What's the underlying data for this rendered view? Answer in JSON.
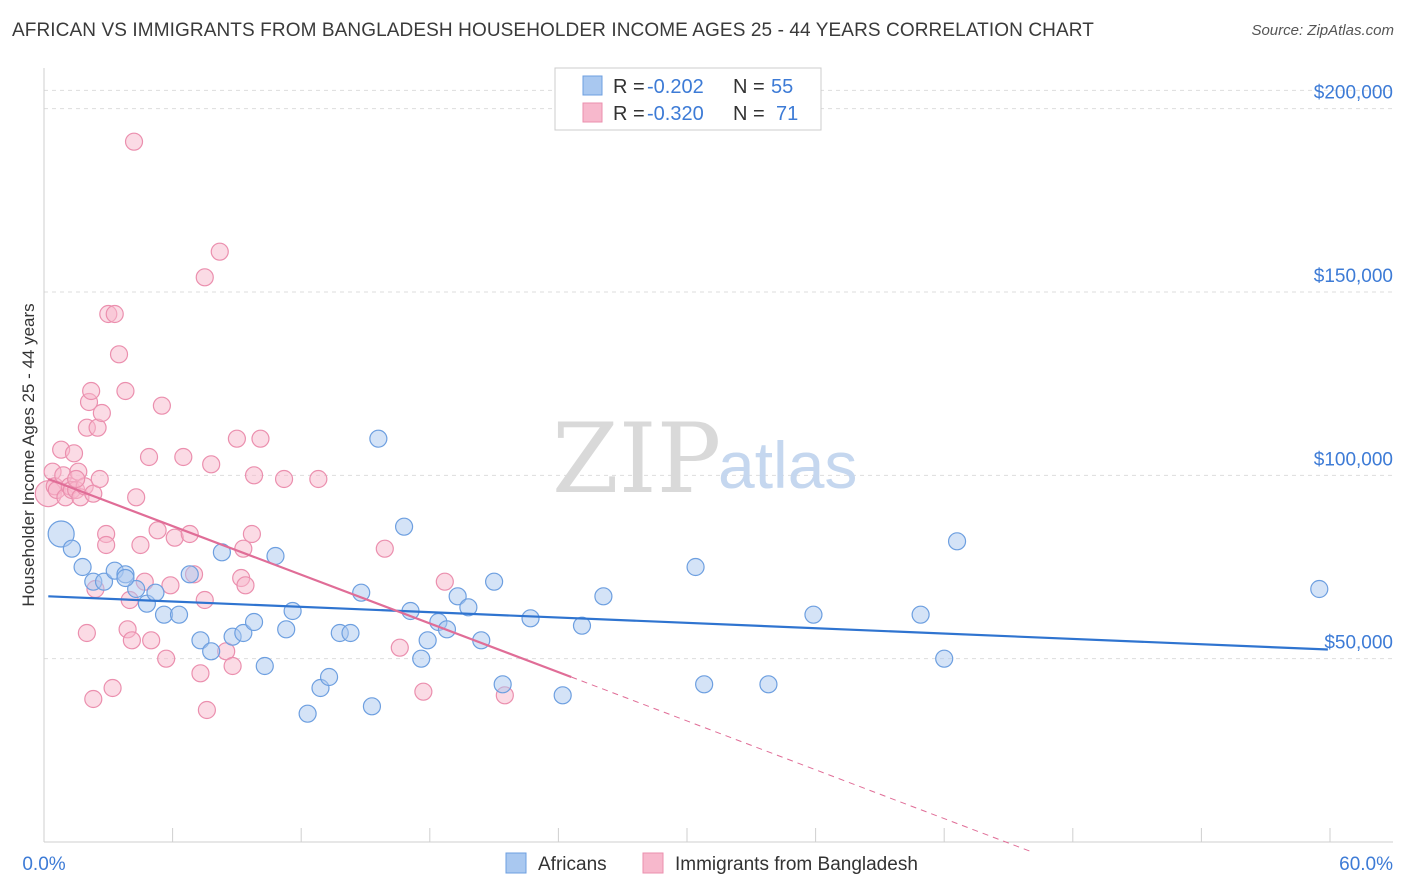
{
  "title": "AFRICAN VS IMMIGRANTS FROM BANGLADESH HOUSEHOLDER INCOME AGES 25 - 44 YEARS CORRELATION CHART",
  "source": "Source: ZipAtlas.com",
  "watermark": {
    "part1": "ZIP",
    "part2": "atlas"
  },
  "colors": {
    "africans_fill": "#a9c8f0",
    "africans_stroke": "#6d9fe0",
    "africans_line": "#2f74d0",
    "bangladesh_fill": "#f7b8cc",
    "bangladesh_stroke": "#eb8fae",
    "bangladesh_line": "#e06d97",
    "axis_label": "#3d7bd6",
    "grid": "#dddddd"
  },
  "legend": {
    "r_label": "R =",
    "n_label": "N =",
    "rows": [
      {
        "r": "-0.202",
        "n": "55"
      },
      {
        "r": "-0.320",
        "n": "71"
      }
    ]
  },
  "bottom_legend": {
    "africans": "Africans",
    "bangladesh": "Immigrants from Bangladesh"
  },
  "chart_data": {
    "type": "scatter",
    "title": "AFRICAN VS IMMIGRANTS FROM BANGLADESH HOUSEHOLDER INCOME AGES 25 - 44 YEARS CORRELATION CHART",
    "xlabel": "",
    "ylabel": "Householder Income Ages 25 - 44 years",
    "xlim": [
      0,
      60
    ],
    "ylim": [
      0,
      210000
    ],
    "x_tick_labels": {
      "min": "0.0%",
      "max": "60.0%"
    },
    "y_ticks": [
      {
        "value": 50000,
        "label": "$50,000"
      },
      {
        "value": 100000,
        "label": "$100,000"
      },
      {
        "value": 150000,
        "label": "$150,000"
      },
      {
        "value": 200000,
        "label": "$200,000"
      }
    ],
    "grid": true,
    "series": [
      {
        "name": "Africans",
        "r": -0.202,
        "n": 55,
        "trend": {
          "x0": 0.2,
          "y0": 67000,
          "x1": 59.9,
          "y1": 52500,
          "dashed_to": null
        },
        "points": [
          [
            0.8,
            84000,
            1
          ],
          [
            1.3,
            80000,
            0
          ],
          [
            1.8,
            75000,
            0
          ],
          [
            2.3,
            71000,
            0
          ],
          [
            2.8,
            71000,
            0
          ],
          [
            3.3,
            74000,
            0
          ],
          [
            3.8,
            73000,
            0
          ],
          [
            4.3,
            69000,
            0
          ],
          [
            4.8,
            65000,
            0
          ],
          [
            5.2,
            68000,
            0
          ],
          [
            5.6,
            62000,
            0
          ],
          [
            6.3,
            62000,
            0
          ],
          [
            6.8,
            73000,
            0
          ],
          [
            7.3,
            55000,
            0
          ],
          [
            7.8,
            52000,
            0
          ],
          [
            8.3,
            79000,
            0
          ],
          [
            8.8,
            56000,
            0
          ],
          [
            9.3,
            57000,
            0
          ],
          [
            9.8,
            60000,
            0
          ],
          [
            10.3,
            48000,
            0
          ],
          [
            10.8,
            78000,
            0
          ],
          [
            11.3,
            58000,
            0
          ],
          [
            11.6,
            63000,
            0
          ],
          [
            12.3,
            35000,
            0
          ],
          [
            12.9,
            42000,
            0
          ],
          [
            13.3,
            45000,
            0
          ],
          [
            13.8,
            57000,
            0
          ],
          [
            14.3,
            57000,
            0
          ],
          [
            14.8,
            68000,
            0
          ],
          [
            15.3,
            37000,
            0
          ],
          [
            15.6,
            110000,
            0
          ],
          [
            16.8,
            86000,
            0
          ],
          [
            17.1,
            63000,
            0
          ],
          [
            17.6,
            50000,
            0
          ],
          [
            17.9,
            55000,
            0
          ],
          [
            18.4,
            60000,
            0
          ],
          [
            18.8,
            58000,
            0
          ],
          [
            19.3,
            67000,
            0
          ],
          [
            19.8,
            64000,
            0
          ],
          [
            20.4,
            55000,
            0
          ],
          [
            21.0,
            71000,
            0
          ],
          [
            21.4,
            43000,
            0
          ],
          [
            22.7,
            61000,
            0
          ],
          [
            24.2,
            40000,
            0
          ],
          [
            25.1,
            59000,
            0
          ],
          [
            26.1,
            67000,
            0
          ],
          [
            30.4,
            75000,
            0
          ],
          [
            30.8,
            43000,
            0
          ],
          [
            33.8,
            43000,
            0
          ],
          [
            35.9,
            62000,
            0
          ],
          [
            40.9,
            62000,
            0
          ],
          [
            42.0,
            50000,
            0
          ],
          [
            42.6,
            82000,
            0
          ],
          [
            59.5,
            69000,
            0
          ],
          [
            3.8,
            72000,
            0
          ]
        ]
      },
      {
        "name": "Immigrants from Bangladesh",
        "r": -0.32,
        "n": 71,
        "trend": {
          "x0": 0.2,
          "y0": 99000,
          "x1": 24.6,
          "y1": 45000,
          "dashed_to": [
            46.0,
            -2500
          ]
        },
        "points": [
          [
            0.2,
            95000,
            1
          ],
          [
            0.4,
            101000,
            0
          ],
          [
            0.5,
            97000,
            0
          ],
          [
            0.6,
            96000,
            0
          ],
          [
            0.8,
            107000,
            0
          ],
          [
            0.9,
            100000,
            0
          ],
          [
            1.0,
            94000,
            0
          ],
          [
            1.2,
            97000,
            0
          ],
          [
            1.3,
            96000,
            0
          ],
          [
            1.4,
            106000,
            0
          ],
          [
            1.5,
            96000,
            0
          ],
          [
            1.6,
            101000,
            0
          ],
          [
            1.7,
            94000,
            0
          ],
          [
            1.9,
            97000,
            0
          ],
          [
            2.0,
            113000,
            0
          ],
          [
            2.1,
            120000,
            0
          ],
          [
            2.2,
            123000,
            0
          ],
          [
            2.3,
            95000,
            0
          ],
          [
            1.5,
            99000,
            0
          ],
          [
            2.5,
            113000,
            0
          ],
          [
            2.7,
            117000,
            0
          ],
          [
            2.9,
            84000,
            0
          ],
          [
            2.9,
            81000,
            0
          ],
          [
            2.4,
            69000,
            0
          ],
          [
            2.0,
            57000,
            0
          ],
          [
            2.3,
            39000,
            0
          ],
          [
            3.0,
            144000,
            0
          ],
          [
            3.3,
            144000,
            0
          ],
          [
            3.5,
            133000,
            0
          ],
          [
            3.8,
            123000,
            0
          ],
          [
            3.9,
            58000,
            0
          ],
          [
            4.0,
            66000,
            0
          ],
          [
            4.1,
            55000,
            0
          ],
          [
            4.3,
            94000,
            0
          ],
          [
            4.5,
            81000,
            0
          ],
          [
            4.7,
            71000,
            0
          ],
          [
            4.9,
            105000,
            0
          ],
          [
            5.0,
            55000,
            0
          ],
          [
            5.3,
            85000,
            0
          ],
          [
            5.5,
            119000,
            0
          ],
          [
            5.7,
            50000,
            0
          ],
          [
            5.9,
            70000,
            0
          ],
          [
            6.1,
            83000,
            0
          ],
          [
            6.5,
            105000,
            0
          ],
          [
            6.8,
            84000,
            0
          ],
          [
            7.0,
            73000,
            0
          ],
          [
            7.3,
            46000,
            0
          ],
          [
            7.5,
            66000,
            0
          ],
          [
            7.5,
            154000,
            0
          ],
          [
            7.8,
            103000,
            0
          ],
          [
            8.2,
            161000,
            0
          ],
          [
            8.5,
            52000,
            0
          ],
          [
            8.8,
            48000,
            0
          ],
          [
            9.0,
            110000,
            0
          ],
          [
            9.2,
            72000,
            0
          ],
          [
            9.4,
            70000,
            0
          ],
          [
            9.7,
            84000,
            0
          ],
          [
            9.3,
            80000,
            0
          ],
          [
            7.6,
            36000,
            0
          ],
          [
            3.2,
            42000,
            0
          ],
          [
            4.2,
            191000,
            0
          ],
          [
            9.8,
            100000,
            0
          ],
          [
            10.1,
            110000,
            0
          ],
          [
            11.2,
            99000,
            0
          ],
          [
            12.8,
            99000,
            0
          ],
          [
            15.9,
            80000,
            0
          ],
          [
            16.6,
            53000,
            0
          ],
          [
            17.7,
            41000,
            0
          ],
          [
            18.7,
            71000,
            0
          ],
          [
            21.5,
            40000,
            0
          ],
          [
            2.6,
            99000,
            0
          ]
        ]
      }
    ]
  }
}
